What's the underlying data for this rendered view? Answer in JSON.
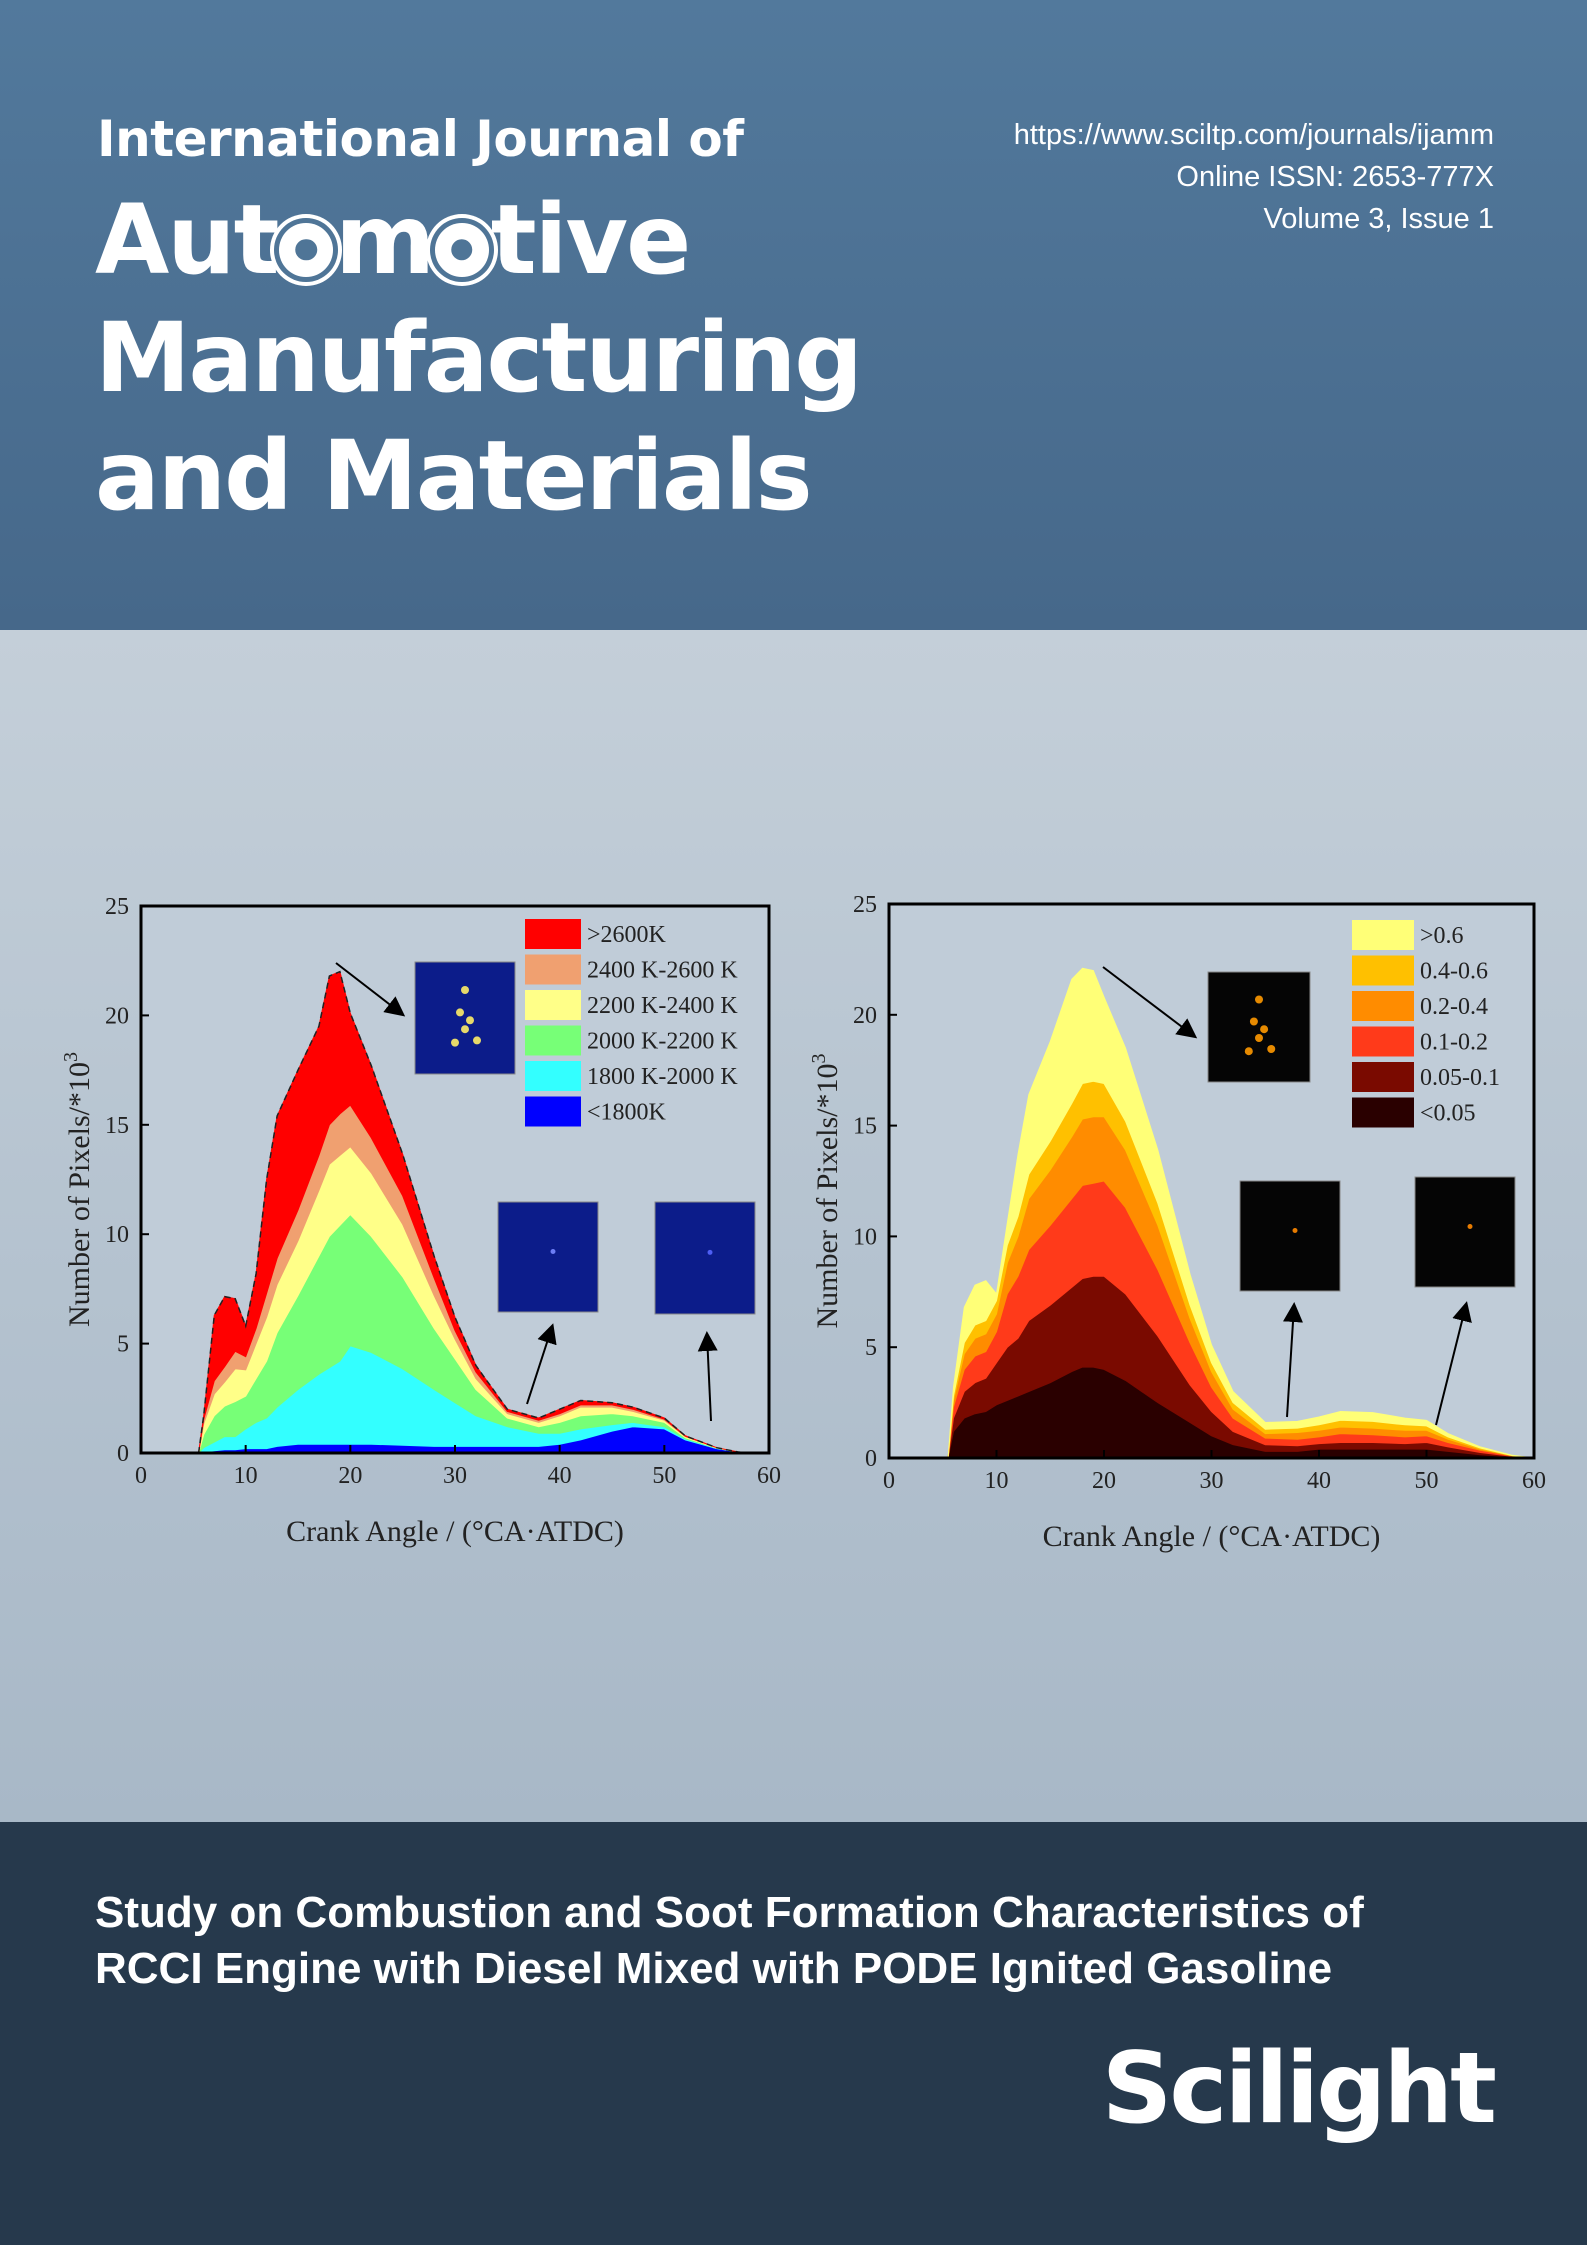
{
  "journal": {
    "prefix": "International Journal of",
    "title_line1_a": "Aut",
    "title_line1_b": "m",
    "title_line1_c": "tive",
    "title_line2": "Manufacturing",
    "title_line3": "and Materials",
    "url": "https://www.sciltp.com/journals/ijamm",
    "issn": "Online ISSN: 2653-777X",
    "volume": "Volume 3, Issue 1"
  },
  "article": {
    "title_line1": "Study on Combustion and Soot Formation Characteristics of",
    "title_line2": "RCCI Engine with Diesel Mixed with PODE Ignited Gasoline"
  },
  "publisher": {
    "name": "Scilight"
  },
  "colors": {
    "header_bg": "#4f7597",
    "footer_bg": "#26394c",
    "temp": [
      "#0000ff",
      "#33ffff",
      "#77ff77",
      "#ffff88",
      "#f0a070",
      "#ff0000"
    ],
    "soot": [
      "#2a0000",
      "#7a0a00",
      "#ff3a1a",
      "#ff8c00",
      "#ffc000",
      "#ffff77"
    ]
  },
  "chart_data": [
    {
      "type": "area",
      "xlabel": "Crank Angle / (°CA·ATDC)",
      "ylabel": "Number of Pixels/*10",
      "ylabel_sup": "3",
      "xlim": [
        0,
        60
      ],
      "ylim": [
        0,
        25
      ],
      "xticks": [
        0,
        10,
        20,
        30,
        40,
        50,
        60
      ],
      "yticks": [
        0,
        5,
        10,
        15,
        20,
        25
      ],
      "legend_position": "top-right",
      "x": [
        5.5,
        6,
        7,
        8,
        9,
        10,
        11,
        12,
        13,
        15,
        17,
        18,
        19,
        20,
        22,
        25,
        28,
        30,
        32,
        35,
        38,
        40,
        42,
        45,
        47,
        50,
        52,
        55,
        57,
        58
      ],
      "series": [
        {
          "name": "<1800K",
          "values": [
            0,
            0.05,
            0.1,
            0.15,
            0.15,
            0.2,
            0.2,
            0.2,
            0.3,
            0.4,
            0.4,
            0.4,
            0.4,
            0.4,
            0.4,
            0.35,
            0.3,
            0.3,
            0.3,
            0.3,
            0.3,
            0.4,
            0.6,
            1.0,
            1.2,
            1.1,
            0.6,
            0.2,
            0.05,
            0
          ]
        },
        {
          "name": "1800 K-2000 K",
          "values": [
            0,
            0.2,
            0.4,
            0.6,
            0.6,
            0.9,
            1.2,
            1.4,
            1.8,
            2.5,
            3.2,
            3.5,
            3.8,
            4.5,
            4.2,
            3.5,
            2.6,
            2.0,
            1.4,
            0.9,
            0.6,
            0.5,
            0.5,
            0.3,
            0.2,
            0.1,
            0.05,
            0.02,
            0,
            0
          ]
        },
        {
          "name": "2000 K-2200 K",
          "values": [
            0,
            0.6,
            1.2,
            1.4,
            1.6,
            1.5,
            2.0,
            2.6,
            3.4,
            4.3,
            5.4,
            6.0,
            6.2,
            6.0,
            5.3,
            4.2,
            2.8,
            2.0,
            1.2,
            0.4,
            0.3,
            0.5,
            0.6,
            0.5,
            0.3,
            0.2,
            0.05,
            0,
            0,
            0
          ]
        },
        {
          "name": "2200 K-2400 K",
          "values": [
            0,
            0.5,
            1.0,
            1.1,
            1.5,
            1.2,
            1.6,
            2.0,
            2.2,
            2.5,
            3.0,
            3.3,
            3.2,
            3.1,
            2.9,
            2.4,
            1.5,
            0.9,
            0.5,
            0.2,
            0.2,
            0.3,
            0.4,
            0.3,
            0.2,
            0.1,
            0.05,
            0.02,
            0,
            0
          ]
        },
        {
          "name": "2400 K-2600 K",
          "values": [
            0,
            0.2,
            0.6,
            0.7,
            0.8,
            0.6,
            0.7,
            1.1,
            1.2,
            1.4,
            1.6,
            1.8,
            1.9,
            1.9,
            1.6,
            1.3,
            0.8,
            0.4,
            0.3,
            0.1,
            0.1,
            0.1,
            0.1,
            0.1,
            0.1,
            0.05,
            0.02,
            0,
            0,
            0
          ]
        },
        {
          "name": ">2600K",
          "values": [
            0,
            0.2,
            3.0,
            3.2,
            2.4,
            1.4,
            2.5,
            5.2,
            6.5,
            6.4,
            5.9,
            6.8,
            6.5,
            4.2,
            3.3,
            1.9,
            1.0,
            0.6,
            0.3,
            0.1,
            0.1,
            0.2,
            0.2,
            0.1,
            0.1,
            0.05,
            0.02,
            0,
            0,
            0
          ]
        }
      ],
      "total": [
        0,
        1.75,
        6.3,
        7.15,
        7.05,
        5.8,
        8.2,
        12.5,
        15.4,
        17.5,
        19.5,
        21.8,
        22.0,
        20.1,
        17.7,
        13.65,
        9.0,
        6.2,
        4.0,
        2.0,
        1.6,
        2.0,
        2.4,
        2.3,
        2.1,
        1.6,
        0.78,
        0.24,
        0.05,
        0
      ]
    },
    {
      "type": "area",
      "xlabel": "Crank Angle / (°CA·ATDC)",
      "ylabel": "Number of Pixels/*10",
      "ylabel_sup": "3",
      "xlim": [
        0,
        60
      ],
      "ylim": [
        0,
        25
      ],
      "xticks": [
        0,
        10,
        20,
        30,
        40,
        50,
        60
      ],
      "yticks": [
        0,
        5,
        10,
        15,
        20,
        25
      ],
      "legend_position": "top-right",
      "x": [
        5.5,
        6,
        7,
        8,
        9,
        10,
        11,
        12,
        13,
        15,
        17,
        18,
        19,
        20,
        22,
        25,
        28,
        30,
        32,
        35,
        38,
        40,
        42,
        45,
        48,
        50,
        52,
        55,
        58,
        60
      ],
      "series": [
        {
          "name": "<0.05",
          "values": [
            0,
            1.2,
            1.8,
            2.0,
            2.1,
            2.4,
            2.6,
            2.8,
            3.0,
            3.4,
            3.9,
            4.1,
            4.1,
            4.0,
            3.5,
            2.5,
            1.6,
            1.0,
            0.6,
            0.3,
            0.3,
            0.4,
            0.4,
            0.4,
            0.4,
            0.4,
            0.3,
            0.15,
            0.05,
            0
          ]
        },
        {
          "name": "0.05-0.1",
          "values": [
            0,
            0.6,
            1.2,
            1.4,
            1.5,
            1.9,
            2.4,
            2.6,
            3.2,
            3.5,
            3.8,
            4.0,
            4.1,
            4.2,
            3.9,
            3.0,
            1.7,
            1.1,
            0.6,
            0.3,
            0.25,
            0.25,
            0.3,
            0.3,
            0.25,
            0.3,
            0.2,
            0.1,
            0.02,
            0
          ]
        },
        {
          "name": "0.1-0.2",
          "values": [
            0,
            0.5,
            1.0,
            1.2,
            1.2,
            1.4,
            2.4,
            2.8,
            3.2,
            3.6,
            4.0,
            4.2,
            4.2,
            4.3,
            3.9,
            3.0,
            1.9,
            1.1,
            0.6,
            0.3,
            0.3,
            0.3,
            0.4,
            0.35,
            0.3,
            0.3,
            0.2,
            0.1,
            0.02,
            0
          ]
        },
        {
          "name": "0.2-0.4",
          "values": [
            0,
            0.3,
            0.7,
            0.8,
            0.8,
            0.8,
            1.4,
            1.8,
            2.3,
            2.5,
            2.8,
            3.0,
            3.0,
            2.9,
            2.6,
            2.0,
            1.1,
            0.7,
            0.4,
            0.2,
            0.3,
            0.3,
            0.3,
            0.3,
            0.3,
            0.25,
            0.15,
            0.05,
            0.01,
            0
          ]
        },
        {
          "name": "0.4-0.6",
          "values": [
            0,
            0.2,
            0.5,
            0.6,
            0.6,
            0.6,
            0.8,
            0.9,
            1.1,
            1.3,
            1.5,
            1.6,
            1.6,
            1.5,
            1.3,
            1.0,
            0.6,
            0.4,
            0.3,
            0.2,
            0.2,
            0.25,
            0.3,
            0.3,
            0.25,
            0.2,
            0.1,
            0.05,
            0.01,
            0
          ]
        },
        {
          "name": ">0.6",
          "values": [
            0,
            0.4,
            1.6,
            1.8,
            1.8,
            0.3,
            1.0,
            2.8,
            3.6,
            4.5,
            5.6,
            5.2,
            5.0,
            3.9,
            3.3,
            2.4,
            1.4,
            0.8,
            0.5,
            0.3,
            0.3,
            0.35,
            0.4,
            0.4,
            0.3,
            0.25,
            0.15,
            0.05,
            0.01,
            0
          ]
        }
      ]
    }
  ]
}
